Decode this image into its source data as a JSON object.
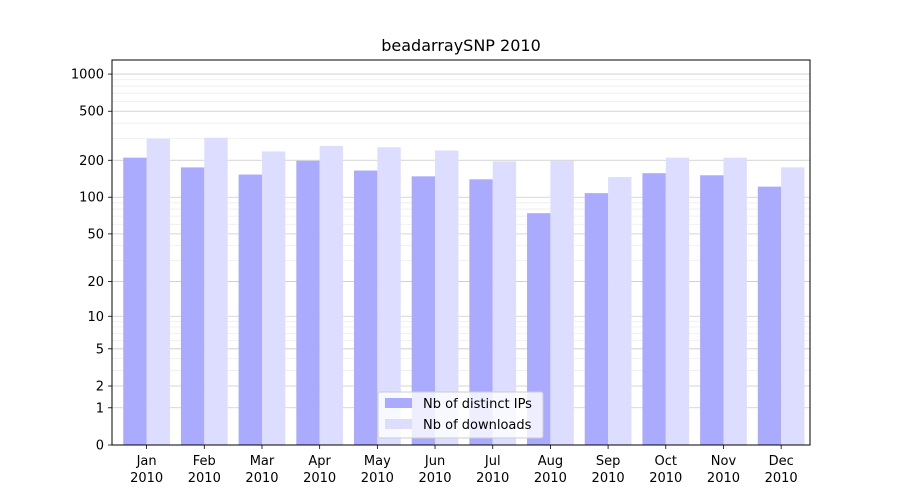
{
  "chart_data": {
    "type": "bar",
    "title": "beadarraySNP 2010",
    "xlabel": "",
    "ylabel": "",
    "yscale": "symlog",
    "ylim": [
      0,
      1300
    ],
    "grid": true,
    "legend_position": "lower-center",
    "categories": [
      {
        "month": "Jan",
        "year": "2010"
      },
      {
        "month": "Feb",
        "year": "2010"
      },
      {
        "month": "Mar",
        "year": "2010"
      },
      {
        "month": "Apr",
        "year": "2010"
      },
      {
        "month": "May",
        "year": "2010"
      },
      {
        "month": "Jun",
        "year": "2010"
      },
      {
        "month": "Jul",
        "year": "2010"
      },
      {
        "month": "Aug",
        "year": "2010"
      },
      {
        "month": "Sep",
        "year": "2010"
      },
      {
        "month": "Oct",
        "year": "2010"
      },
      {
        "month": "Nov",
        "year": "2010"
      },
      {
        "month": "Dec",
        "year": "2010"
      }
    ],
    "y_ticks": [
      {
        "value": 0,
        "label": "0"
      },
      {
        "value": 1,
        "label": "1"
      },
      {
        "value": 2,
        "label": "2"
      },
      {
        "value": 5,
        "label": "5"
      },
      {
        "value": 10,
        "label": "10"
      },
      {
        "value": 20,
        "label": "20"
      },
      {
        "value": 50,
        "label": "50"
      },
      {
        "value": 100,
        "label": "100"
      },
      {
        "value": 200,
        "label": "200"
      },
      {
        "value": 500,
        "label": "500"
      },
      {
        "value": 1000,
        "label": "1000"
      }
    ],
    "series": [
      {
        "name": "Nb of distinct IPs",
        "color": "#aaaaff",
        "values": [
          210,
          175,
          153,
          198,
          165,
          148,
          140,
          74,
          108,
          157,
          151,
          122
        ]
      },
      {
        "name": "Nb of downloads",
        "color": "#ddddff",
        "values": [
          300,
          305,
          236,
          262,
          255,
          240,
          196,
          198,
          146,
          210,
          210,
          175
        ]
      }
    ]
  }
}
